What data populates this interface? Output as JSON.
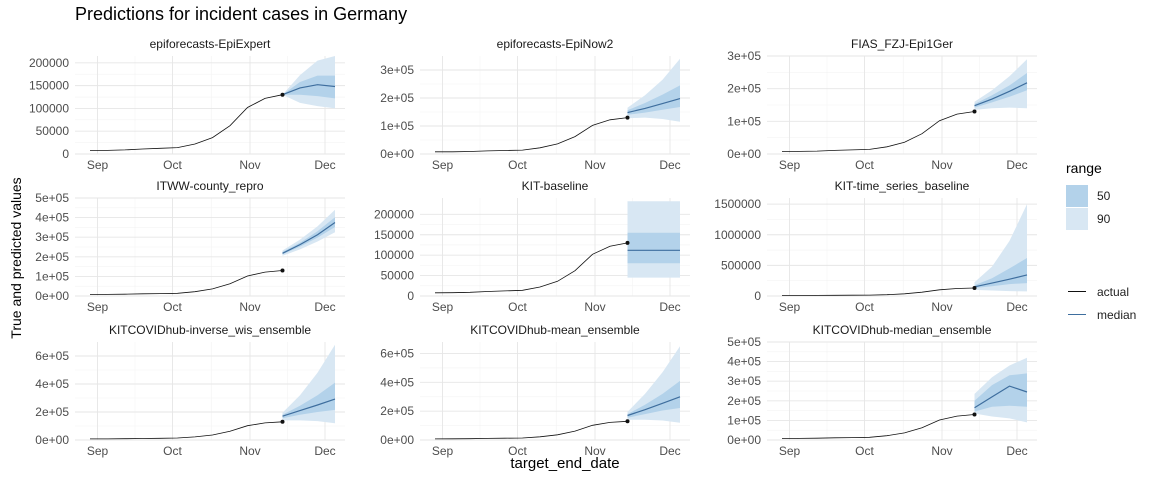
{
  "title": "Predictions for incident cases in Germany",
  "xlabel": "target_end_date",
  "ylabel": "True and predicted values",
  "legend": {
    "range_title": "range",
    "range_items": [
      {
        "label": "50",
        "color": "#b3d2ea"
      },
      {
        "label": "90",
        "color": "#d8e7f3"
      }
    ],
    "line_items": [
      {
        "label": "actual",
        "color": "#111111"
      },
      {
        "label": "median",
        "color": "#3e6e9e"
      }
    ]
  },
  "chart_data": [
    {
      "type": "line",
      "title": "epiforecasts-EpiExpert",
      "xticks": [
        "Sep",
        "Oct",
        "Nov",
        "Dec"
      ],
      "yticks": [
        0,
        50000,
        100000,
        150000,
        200000
      ],
      "ytick_labels": [
        "0",
        "50000",
        "100000",
        "150000",
        "200000"
      ],
      "ylim": [
        0,
        215000
      ],
      "actual": {
        "x": [
          "2020-08-29",
          "2020-09-05",
          "2020-09-12",
          "2020-09-19",
          "2020-09-26",
          "2020-10-03",
          "2020-10-10",
          "2020-10-17",
          "2020-10-24",
          "2020-10-31",
          "2020-11-07",
          "2020-11-14"
        ],
        "y": [
          7800,
          8000,
          9000,
          11000,
          12500,
          14000,
          22000,
          36000,
          62000,
          102000,
          122000,
          130000
        ]
      },
      "forecast": {
        "x": [
          "2020-11-14",
          "2020-11-21",
          "2020-11-28",
          "2020-12-05"
        ],
        "median": [
          130000,
          145000,
          152000,
          148000
        ],
        "q50_low": [
          130000,
          130000,
          127000,
          122000
        ],
        "q50_high": [
          130000,
          158000,
          172000,
          172000
        ],
        "q90_low": [
          130000,
          112000,
          105000,
          100000
        ],
        "q90_high": [
          130000,
          173000,
          205000,
          215000
        ]
      }
    },
    {
      "type": "line",
      "title": "epiforecasts-EpiNow2",
      "xticks": [
        "Sep",
        "Oct",
        "Nov",
        "Dec"
      ],
      "yticks": [
        0,
        100000,
        200000,
        300000
      ],
      "ytick_labels": [
        "0e+00",
        "1e+05",
        "2e+05",
        "3e+05"
      ],
      "ylim": [
        0,
        350000
      ],
      "actual": {
        "x": [
          "2020-08-29",
          "2020-09-05",
          "2020-09-12",
          "2020-09-19",
          "2020-09-26",
          "2020-10-03",
          "2020-10-10",
          "2020-10-17",
          "2020-10-24",
          "2020-10-31",
          "2020-11-07",
          "2020-11-14"
        ],
        "y": [
          7800,
          8000,
          9000,
          11000,
          12500,
          14000,
          22000,
          36000,
          62000,
          102000,
          122000,
          130000
        ]
      },
      "forecast": {
        "x": [
          "2020-11-14",
          "2020-11-21",
          "2020-11-28",
          "2020-12-05"
        ],
        "median": [
          148000,
          163000,
          180000,
          198000
        ],
        "q50_low": [
          140000,
          148000,
          158000,
          168000
        ],
        "q50_high": [
          156000,
          182000,
          212000,
          245000
        ],
        "q90_low": [
          128000,
          130000,
          125000,
          115000
        ],
        "q90_high": [
          165000,
          210000,
          265000,
          340000
        ]
      }
    },
    {
      "type": "line",
      "title": "FIAS_FZJ-Epi1Ger",
      "xticks": [
        "Sep",
        "Oct",
        "Nov",
        "Dec"
      ],
      "yticks": [
        0,
        100000,
        200000,
        300000
      ],
      "ytick_labels": [
        "0e+00",
        "1e+05",
        "2e+05",
        "3e+05"
      ],
      "ylim": [
        0,
        300000
      ],
      "actual": {
        "x": [
          "2020-08-29",
          "2020-09-05",
          "2020-09-12",
          "2020-09-19",
          "2020-09-26",
          "2020-10-03",
          "2020-10-10",
          "2020-10-17",
          "2020-10-24",
          "2020-10-31",
          "2020-11-07",
          "2020-11-14"
        ],
        "y": [
          7800,
          8000,
          9000,
          11000,
          12500,
          14000,
          22000,
          36000,
          62000,
          102000,
          122000,
          130000
        ]
      },
      "forecast": {
        "x": [
          "2020-11-14",
          "2020-11-21",
          "2020-11-28",
          "2020-12-05"
        ],
        "median": [
          148000,
          168000,
          192000,
          218000
        ],
        "q50_low": [
          142000,
          158000,
          175000,
          195000
        ],
        "q50_high": [
          153000,
          180000,
          210000,
          248000
        ],
        "q90_low": [
          135000,
          140000,
          142000,
          140000
        ],
        "q90_high": [
          160000,
          195000,
          238000,
          290000
        ]
      }
    },
    {
      "type": "line",
      "title": "ITWW-county_repro",
      "xticks": [
        "Sep",
        "Oct",
        "Nov",
        "Dec"
      ],
      "yticks": [
        0,
        100000,
        200000,
        300000,
        400000,
        500000
      ],
      "ytick_labels": [
        "0e+00",
        "1e+05",
        "2e+05",
        "3e+05",
        "4e+05",
        "5e+05"
      ],
      "ylim": [
        0,
        500000
      ],
      "actual": {
        "x": [
          "2020-08-29",
          "2020-09-05",
          "2020-09-12",
          "2020-09-19",
          "2020-09-26",
          "2020-10-03",
          "2020-10-10",
          "2020-10-17",
          "2020-10-24",
          "2020-10-31",
          "2020-11-07",
          "2020-11-14"
        ],
        "y": [
          7800,
          8000,
          9000,
          11000,
          12500,
          14000,
          22000,
          36000,
          62000,
          102000,
          122000,
          130000
        ]
      },
      "forecast": {
        "x": [
          "2020-11-14",
          "2020-11-21",
          "2020-11-28",
          "2020-12-05"
        ],
        "median": [
          218000,
          262000,
          312000,
          375000
        ],
        "q50_low": [
          212000,
          252000,
          298000,
          352000
        ],
        "q50_high": [
          225000,
          272000,
          330000,
          402000
        ],
        "q90_low": [
          205000,
          238000,
          278000,
          325000
        ],
        "q90_high": [
          232000,
          288000,
          355000,
          440000
        ]
      }
    },
    {
      "type": "line",
      "title": "KIT-baseline",
      "xticks": [
        "Sep",
        "Oct",
        "Nov",
        "Dec"
      ],
      "yticks": [
        0,
        50000,
        100000,
        150000,
        200000
      ],
      "ytick_labels": [
        "0",
        "50000",
        "100000",
        "150000",
        "200000"
      ],
      "ylim": [
        0,
        240000
      ],
      "actual": {
        "x": [
          "2020-08-29",
          "2020-09-05",
          "2020-09-12",
          "2020-09-19",
          "2020-09-26",
          "2020-10-03",
          "2020-10-10",
          "2020-10-17",
          "2020-10-24",
          "2020-10-31",
          "2020-11-07",
          "2020-11-14"
        ],
        "y": [
          7800,
          8000,
          9000,
          11000,
          12500,
          14000,
          22000,
          36000,
          62000,
          102000,
          122000,
          130000
        ]
      },
      "forecast": {
        "x": [
          "2020-11-14",
          "2020-11-21",
          "2020-11-28",
          "2020-12-05"
        ],
        "median": [
          112000,
          112000,
          112000,
          112000
        ],
        "q50_low": [
          80000,
          80000,
          80000,
          80000
        ],
        "q50_high": [
          155000,
          155000,
          155000,
          155000
        ],
        "q90_low": [
          45000,
          45000,
          45000,
          45000
        ],
        "q90_high": [
          232000,
          232000,
          232000,
          232000
        ]
      }
    },
    {
      "type": "line",
      "title": "KIT-time_series_baseline",
      "xticks": [
        "Sep",
        "Oct",
        "Nov",
        "Dec"
      ],
      "yticks": [
        0,
        500000,
        1000000,
        1500000
      ],
      "ytick_labels": [
        "0",
        "500000",
        "1000000",
        "1500000"
      ],
      "ylim": [
        0,
        1600000
      ],
      "actual": {
        "x": [
          "2020-08-29",
          "2020-09-05",
          "2020-09-12",
          "2020-09-19",
          "2020-09-26",
          "2020-10-03",
          "2020-10-10",
          "2020-10-17",
          "2020-10-24",
          "2020-10-31",
          "2020-11-07",
          "2020-11-14"
        ],
        "y": [
          7800,
          8000,
          9000,
          11000,
          12500,
          14000,
          22000,
          36000,
          62000,
          102000,
          122000,
          130000
        ]
      },
      "forecast": {
        "x": [
          "2020-11-14",
          "2020-11-21",
          "2020-11-28",
          "2020-12-05"
        ],
        "median": [
          150000,
          210000,
          275000,
          345000
        ],
        "q50_low": [
          130000,
          160000,
          195000,
          210000
        ],
        "q50_high": [
          175000,
          290000,
          450000,
          620000
        ],
        "q90_low": [
          100000,
          90000,
          80000,
          75000
        ],
        "q90_high": [
          225000,
          480000,
          900000,
          1500000
        ]
      }
    },
    {
      "type": "line",
      "title": "KITCOVIDhub-inverse_wis_ensemble",
      "xticks": [
        "Sep",
        "Oct",
        "Nov",
        "Dec"
      ],
      "yticks": [
        0,
        200000,
        400000,
        600000
      ],
      "ytick_labels": [
        "0e+00",
        "2e+05",
        "4e+05",
        "6e+05"
      ],
      "ylim": [
        0,
        700000
      ],
      "actual": {
        "x": [
          "2020-08-29",
          "2020-09-05",
          "2020-09-12",
          "2020-09-19",
          "2020-09-26",
          "2020-10-03",
          "2020-10-10",
          "2020-10-17",
          "2020-10-24",
          "2020-10-31",
          "2020-11-07",
          "2020-11-14"
        ],
        "y": [
          7800,
          8000,
          9000,
          11000,
          12500,
          14000,
          22000,
          36000,
          62000,
          102000,
          122000,
          130000
        ]
      },
      "forecast": {
        "x": [
          "2020-11-14",
          "2020-11-21",
          "2020-11-28",
          "2020-12-05"
        ],
        "median": [
          170000,
          210000,
          250000,
          292000
        ],
        "q50_low": [
          155000,
          180000,
          200000,
          215000
        ],
        "q50_high": [
          180000,
          245000,
          320000,
          410000
        ],
        "q90_low": [
          140000,
          140000,
          135000,
          120000
        ],
        "q90_high": [
          195000,
          320000,
          480000,
          680000
        ]
      }
    },
    {
      "type": "line",
      "title": "KITCOVIDhub-mean_ensemble",
      "xticks": [
        "Sep",
        "Oct",
        "Nov",
        "Dec"
      ],
      "yticks": [
        0,
        200000,
        400000,
        600000
      ],
      "ytick_labels": [
        "0e+00",
        "2e+05",
        "4e+05",
        "6e+05"
      ],
      "ylim": [
        0,
        680000
      ],
      "actual": {
        "x": [
          "2020-08-29",
          "2020-09-05",
          "2020-09-12",
          "2020-09-19",
          "2020-09-26",
          "2020-10-03",
          "2020-10-10",
          "2020-10-17",
          "2020-10-24",
          "2020-10-31",
          "2020-11-07",
          "2020-11-14"
        ],
        "y": [
          7800,
          8000,
          9000,
          11000,
          12500,
          14000,
          22000,
          36000,
          62000,
          102000,
          122000,
          130000
        ]
      },
      "forecast": {
        "x": [
          "2020-11-14",
          "2020-11-21",
          "2020-11-28",
          "2020-12-05"
        ],
        "median": [
          170000,
          210000,
          255000,
          300000
        ],
        "q50_low": [
          155000,
          180000,
          205000,
          222000
        ],
        "q50_high": [
          180000,
          245000,
          320000,
          410000
        ],
        "q90_low": [
          140000,
          140000,
          135000,
          120000
        ],
        "q90_high": [
          195000,
          320000,
          470000,
          650000
        ]
      }
    },
    {
      "type": "line",
      "title": "KITCOVIDhub-median_ensemble",
      "xticks": [
        "Sep",
        "Oct",
        "Nov",
        "Dec"
      ],
      "yticks": [
        0,
        100000,
        200000,
        300000,
        400000,
        500000
      ],
      "ytick_labels": [
        "0e+00",
        "1e+05",
        "2e+05",
        "3e+05",
        "4e+05",
        "5e+05"
      ],
      "ylim": [
        0,
        500000
      ],
      "actual": {
        "x": [
          "2020-08-29",
          "2020-09-05",
          "2020-09-12",
          "2020-09-19",
          "2020-09-26",
          "2020-10-03",
          "2020-10-10",
          "2020-10-17",
          "2020-10-24",
          "2020-10-31",
          "2020-11-07",
          "2020-11-14"
        ],
        "y": [
          7800,
          8000,
          9000,
          11000,
          12500,
          14000,
          22000,
          36000,
          62000,
          102000,
          122000,
          130000
        ]
      },
      "forecast": {
        "x": [
          "2020-11-14",
          "2020-11-21",
          "2020-11-28",
          "2020-12-05"
        ],
        "median": [
          165000,
          220000,
          275000,
          245000
        ],
        "q50_low": [
          145000,
          170000,
          175000,
          170000
        ],
        "q50_high": [
          200000,
          280000,
          330000,
          340000
        ],
        "q90_low": [
          135000,
          120000,
          110000,
          90000
        ],
        "q90_high": [
          235000,
          320000,
          380000,
          420000
        ]
      }
    }
  ]
}
